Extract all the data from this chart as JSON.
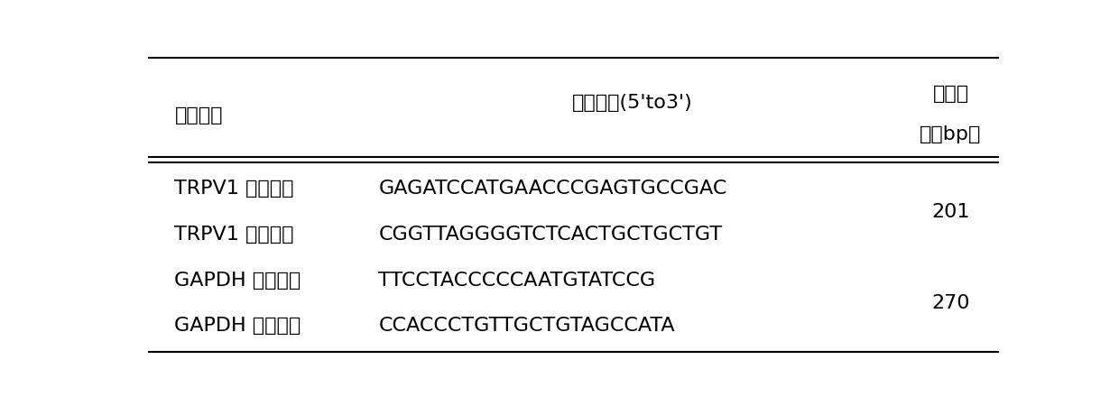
{
  "header_col1": "引物名称",
  "header_col2": "引物序列(5'to3')",
  "header_col3_line1": "产物大",
  "header_col3_line2": "小（bp）",
  "rows": [
    [
      "TRPV1 上游引物",
      "GAGATCCATGAACCCGAGTGCCGAC"
    ],
    [
      "TRPV1 下游引物",
      "CGGTTAGGGGTCTCACTGCTGCTGT"
    ],
    [
      "GAPDH 上游引物",
      "TTCCTACCCCCAATGTATCCG"
    ],
    [
      "GAPDH 下游引物",
      "CCACCCTGTTGCTGTAGCCATA"
    ]
  ],
  "product_sizes": [
    "201",
    "270"
  ],
  "bg_color": "#ffffff",
  "text_color": "#000000",
  "font_size": 16,
  "header_font_size": 16
}
